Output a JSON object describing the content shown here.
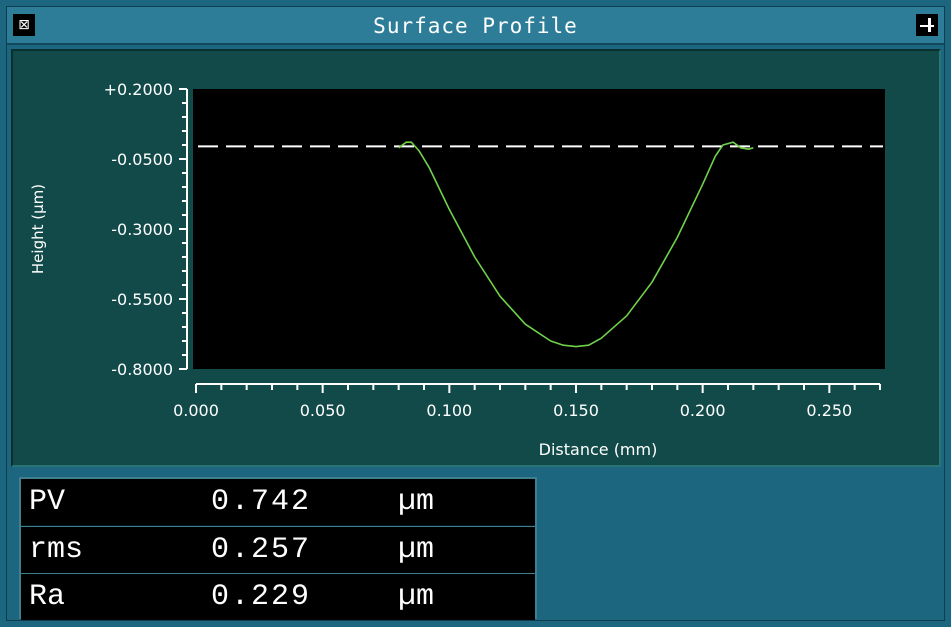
{
  "window": {
    "title": "Surface Profile",
    "menu_icon": "window-menu-icon",
    "pin_icon": "pin-icon"
  },
  "colors": {
    "window_bg": "#1d6680",
    "plot_panel_bg": "#124a4a",
    "plot_area_bg": "#000000",
    "profile_line": "#6fd24a",
    "reference_line": "#ffffff",
    "axis_text": "#ffffff"
  },
  "chart_data": {
    "type": "line",
    "title": "",
    "xlabel": "Distance (mm)",
    "ylabel": "Height (µm)",
    "xlim": [
      0,
      0.27
    ],
    "ylim": [
      -0.8,
      0.2
    ],
    "x_ticks": [
      "0.000",
      "0.050",
      "0.100",
      "0.150",
      "0.200",
      "0.250"
    ],
    "y_ticks": [
      "+0.2000",
      "-0.0500",
      "-0.3000",
      "-0.5500",
      "-0.8000"
    ],
    "x_tick_values": [
      0,
      0.05,
      0.1,
      0.15,
      0.2,
      0.25
    ],
    "y_tick_values": [
      0.2,
      -0.05,
      -0.3,
      -0.55,
      -0.8
    ],
    "grid": false,
    "reference_line": {
      "style": "dashed",
      "y": -0.005
    },
    "series": [
      {
        "x": [
          0.08,
          0.083,
          0.085,
          0.088,
          0.092,
          0.1,
          0.11,
          0.12,
          0.13,
          0.14,
          0.145,
          0.15,
          0.155,
          0.16,
          0.17,
          0.18,
          0.19,
          0.2,
          0.205,
          0.208,
          0.212,
          0.215,
          0.218,
          0.22
        ],
        "y": [
          -0.01,
          0.01,
          0.01,
          -0.02,
          -0.08,
          -0.23,
          -0.4,
          -0.54,
          -0.64,
          -0.7,
          -0.715,
          -0.72,
          -0.715,
          -0.69,
          -0.61,
          -0.49,
          -0.33,
          -0.14,
          -0.04,
          0.0,
          0.01,
          -0.01,
          -0.015,
          -0.01
        ]
      }
    ]
  },
  "stats": [
    {
      "name": "PV",
      "value": "0.742",
      "unit": "µm"
    },
    {
      "name": "rms",
      "value": "0.257",
      "unit": "µm"
    },
    {
      "name": "Ra",
      "value": "0.229",
      "unit": "µm"
    }
  ]
}
